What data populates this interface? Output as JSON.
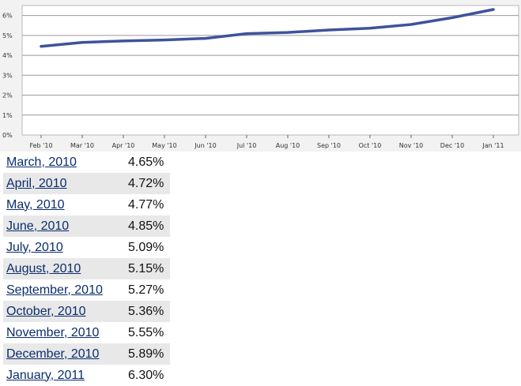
{
  "colors": {
    "line": "#3e539c",
    "grid": "#9a9a9a",
    "plot_background": "#ffffff",
    "link": "#0a2d6e",
    "row_stripe": "#e8e8e8"
  },
  "chart_data": {
    "type": "line",
    "title": "",
    "xlabel": "",
    "ylabel": "",
    "categories": [
      "Feb '10",
      "Mar '10",
      "Apr '10",
      "May '10",
      "Jun '10",
      "Jul '10",
      "Aug '10",
      "Sep '10",
      "Oct '10",
      "Nov '10",
      "Dec '10",
      "Jan '11"
    ],
    "y_ticks": [
      "0%",
      "1%",
      "2%",
      "3%",
      "4%",
      "5%",
      "6%"
    ],
    "ylim": [
      0,
      6.5
    ],
    "grid": true,
    "series": [
      {
        "values": [
          4.45,
          4.65,
          4.72,
          4.77,
          4.85,
          5.09,
          5.15,
          5.27,
          5.36,
          5.55,
          5.89,
          6.3
        ]
      }
    ]
  },
  "table": {
    "rows": [
      {
        "month": "March, 2010",
        "rate": "4.65%"
      },
      {
        "month": "April, 2010",
        "rate": "4.72%"
      },
      {
        "month": "May, 2010",
        "rate": "4.77%"
      },
      {
        "month": "June, 2010",
        "rate": "4.85%"
      },
      {
        "month": "July, 2010",
        "rate": "5.09%"
      },
      {
        "month": "August, 2010",
        "rate": "5.15%"
      },
      {
        "month": "September, 2010",
        "rate": "5.27%"
      },
      {
        "month": "October, 2010",
        "rate": "5.36%"
      },
      {
        "month": "November, 2010",
        "rate": "5.55%"
      },
      {
        "month": "December, 2010",
        "rate": "5.89%"
      },
      {
        "month": "January, 2011",
        "rate": "6.30%"
      }
    ]
  }
}
